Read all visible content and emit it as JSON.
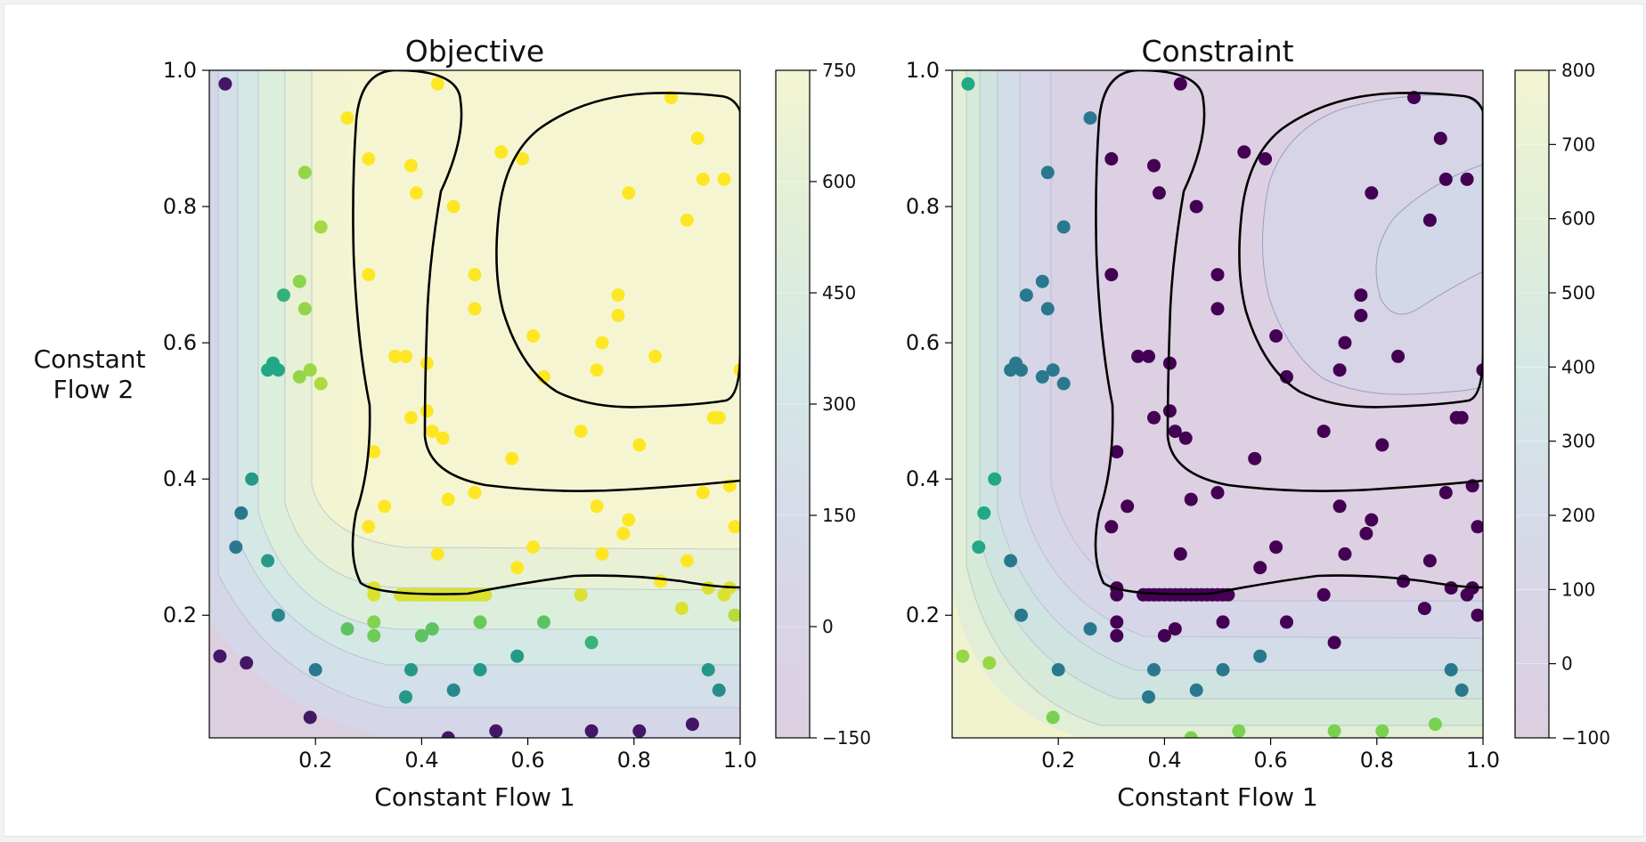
{
  "chart_data": [
    {
      "type": "contour",
      "title": "Objective",
      "xlabel": "Constant Flow 1",
      "ylabel": "Constant\nFlow 2",
      "xlim": [
        0.0,
        1.0
      ],
      "ylim": [
        0.02,
        1.0
      ],
      "xticks": [
        "0.2",
        "0.4",
        "0.6",
        "0.8",
        "1.0"
      ],
      "yticks": [
        "0.2",
        "0.4",
        "0.6",
        "0.8",
        "1.0"
      ],
      "colormap": "viridis",
      "colorbar": {
        "ticks": [
          "−150",
          "0",
          "150",
          "300",
          "450",
          "600",
          "750"
        ],
        "levels": [
          -150,
          0,
          150,
          300,
          450,
          600,
          750
        ]
      },
      "points": [
        {
          "x": 0.03,
          "y": 0.98,
          "v": -100
        },
        {
          "x": 0.18,
          "y": 0.85,
          "v": 480
        },
        {
          "x": 0.21,
          "y": 0.77,
          "v": 500
        },
        {
          "x": 0.17,
          "y": 0.69,
          "v": 470
        },
        {
          "x": 0.18,
          "y": 0.65,
          "v": 480
        },
        {
          "x": 0.14,
          "y": 0.67,
          "v": 330
        },
        {
          "x": 0.11,
          "y": 0.56,
          "v": 300
        },
        {
          "x": 0.12,
          "y": 0.57,
          "v": 300
        },
        {
          "x": 0.13,
          "y": 0.56,
          "v": 300
        },
        {
          "x": 0.17,
          "y": 0.55,
          "v": 480
        },
        {
          "x": 0.19,
          "y": 0.56,
          "v": 490
        },
        {
          "x": 0.21,
          "y": 0.54,
          "v": 510
        },
        {
          "x": 0.08,
          "y": 0.4,
          "v": 250
        },
        {
          "x": 0.06,
          "y": 0.35,
          "v": 150
        },
        {
          "x": 0.05,
          "y": 0.3,
          "v": 150
        },
        {
          "x": 0.11,
          "y": 0.28,
          "v": 250
        },
        {
          "x": 0.13,
          "y": 0.2,
          "v": 200
        },
        {
          "x": 0.2,
          "y": 0.12,
          "v": 150
        },
        {
          "x": 0.19,
          "y": 0.05,
          "v": -100
        },
        {
          "x": 0.02,
          "y": 0.14,
          "v": -100
        },
        {
          "x": 0.07,
          "y": 0.13,
          "v": -100
        },
        {
          "x": 0.26,
          "y": 0.93,
          "v": 700
        },
        {
          "x": 0.3,
          "y": 0.7,
          "v": 700
        },
        {
          "x": 0.3,
          "y": 0.33,
          "v": 700
        },
        {
          "x": 0.31,
          "y": 0.44,
          "v": 700
        },
        {
          "x": 0.33,
          "y": 0.36,
          "v": 700
        },
        {
          "x": 0.3,
          "y": 0.87,
          "v": 700
        },
        {
          "x": 0.35,
          "y": 0.58,
          "v": 700
        },
        {
          "x": 0.37,
          "y": 0.58,
          "v": 700
        },
        {
          "x": 0.38,
          "y": 0.86,
          "v": 700
        },
        {
          "x": 0.39,
          "y": 0.82,
          "v": 700
        },
        {
          "x": 0.38,
          "y": 0.49,
          "v": 700
        },
        {
          "x": 0.41,
          "y": 0.57,
          "v": 700
        },
        {
          "x": 0.41,
          "y": 0.5,
          "v": 700
        },
        {
          "x": 0.42,
          "y": 0.47,
          "v": 700
        },
        {
          "x": 0.44,
          "y": 0.46,
          "v": 700
        },
        {
          "x": 0.45,
          "y": 0.37,
          "v": 700
        },
        {
          "x": 0.43,
          "y": 0.29,
          "v": 700
        },
        {
          "x": 0.46,
          "y": 0.8,
          "v": 700
        },
        {
          "x": 0.43,
          "y": 0.98,
          "v": 700
        },
        {
          "x": 0.5,
          "y": 0.7,
          "v": 700
        },
        {
          "x": 0.5,
          "y": 0.65,
          "v": 700
        },
        {
          "x": 0.5,
          "y": 0.38,
          "v": 700
        },
        {
          "x": 0.55,
          "y": 0.88,
          "v": 700
        },
        {
          "x": 0.59,
          "y": 0.87,
          "v": 700
        },
        {
          "x": 0.57,
          "y": 0.43,
          "v": 700
        },
        {
          "x": 0.58,
          "y": 0.27,
          "v": 700
        },
        {
          "x": 0.61,
          "y": 0.3,
          "v": 700
        },
        {
          "x": 0.61,
          "y": 0.61,
          "v": 700
        },
        {
          "x": 0.63,
          "y": 0.55,
          "v": 700
        },
        {
          "x": 0.7,
          "y": 0.47,
          "v": 700
        },
        {
          "x": 0.73,
          "y": 0.56,
          "v": 700
        },
        {
          "x": 0.74,
          "y": 0.6,
          "v": 700
        },
        {
          "x": 0.77,
          "y": 0.64,
          "v": 700
        },
        {
          "x": 0.77,
          "y": 0.67,
          "v": 700
        },
        {
          "x": 0.74,
          "y": 0.29,
          "v": 700
        },
        {
          "x": 0.73,
          "y": 0.36,
          "v": 700
        },
        {
          "x": 0.78,
          "y": 0.32,
          "v": 700
        },
        {
          "x": 0.79,
          "y": 0.34,
          "v": 700
        },
        {
          "x": 0.79,
          "y": 0.82,
          "v": 700
        },
        {
          "x": 0.81,
          "y": 0.45,
          "v": 700
        },
        {
          "x": 0.84,
          "y": 0.58,
          "v": 700
        },
        {
          "x": 0.87,
          "y": 0.96,
          "v": 700
        },
        {
          "x": 0.9,
          "y": 0.78,
          "v": 700
        },
        {
          "x": 0.92,
          "y": 0.9,
          "v": 700
        },
        {
          "x": 0.93,
          "y": 0.84,
          "v": 700
        },
        {
          "x": 0.93,
          "y": 0.38,
          "v": 700
        },
        {
          "x": 0.95,
          "y": 0.49,
          "v": 700
        },
        {
          "x": 0.96,
          "y": 0.49,
          "v": 700
        },
        {
          "x": 0.97,
          "y": 0.84,
          "v": 700
        },
        {
          "x": 0.98,
          "y": 0.39,
          "v": 700
        },
        {
          "x": 0.99,
          "y": 0.33,
          "v": 700
        },
        {
          "x": 1.0,
          "y": 0.56,
          "v": 700
        },
        {
          "x": 0.85,
          "y": 0.25,
          "v": 600
        },
        {
          "x": 0.89,
          "y": 0.21,
          "v": 560
        },
        {
          "x": 0.9,
          "y": 0.28,
          "v": 650
        },
        {
          "x": 0.94,
          "y": 0.24,
          "v": 560
        },
        {
          "x": 0.97,
          "y": 0.23,
          "v": 560
        },
        {
          "x": 0.98,
          "y": 0.24,
          "v": 560
        },
        {
          "x": 0.99,
          "y": 0.2,
          "v": 520
        },
        {
          "x": 0.7,
          "y": 0.23,
          "v": 560
        },
        {
          "x": 0.31,
          "y": 0.23,
          "v": 560
        },
        {
          "x": 0.31,
          "y": 0.24,
          "v": 560
        },
        {
          "x": 0.36,
          "y": 0.23,
          "v": 560
        },
        {
          "x": 0.37,
          "y": 0.23,
          "v": 560
        },
        {
          "x": 0.38,
          "y": 0.23,
          "v": 560
        },
        {
          "x": 0.39,
          "y": 0.23,
          "v": 560
        },
        {
          "x": 0.4,
          "y": 0.23,
          "v": 560
        },
        {
          "x": 0.41,
          "y": 0.23,
          "v": 560
        },
        {
          "x": 0.42,
          "y": 0.23,
          "v": 560
        },
        {
          "x": 0.43,
          "y": 0.23,
          "v": 560
        },
        {
          "x": 0.44,
          "y": 0.23,
          "v": 560
        },
        {
          "x": 0.45,
          "y": 0.23,
          "v": 560
        },
        {
          "x": 0.46,
          "y": 0.23,
          "v": 560
        },
        {
          "x": 0.47,
          "y": 0.23,
          "v": 560
        },
        {
          "x": 0.48,
          "y": 0.23,
          "v": 560
        },
        {
          "x": 0.49,
          "y": 0.23,
          "v": 560
        },
        {
          "x": 0.5,
          "y": 0.23,
          "v": 560
        },
        {
          "x": 0.51,
          "y": 0.23,
          "v": 560
        },
        {
          "x": 0.52,
          "y": 0.23,
          "v": 560
        },
        {
          "x": 0.31,
          "y": 0.19,
          "v": 460
        },
        {
          "x": 0.31,
          "y": 0.17,
          "v": 430
        },
        {
          "x": 0.26,
          "y": 0.18,
          "v": 400
        },
        {
          "x": 0.4,
          "y": 0.17,
          "v": 400
        },
        {
          "x": 0.42,
          "y": 0.18,
          "v": 400
        },
        {
          "x": 0.51,
          "y": 0.19,
          "v": 420
        },
        {
          "x": 0.63,
          "y": 0.19,
          "v": 400
        },
        {
          "x": 0.72,
          "y": 0.16,
          "v": 340
        },
        {
          "x": 0.38,
          "y": 0.12,
          "v": 250
        },
        {
          "x": 0.37,
          "y": 0.08,
          "v": 250
        },
        {
          "x": 0.46,
          "y": 0.09,
          "v": 200
        },
        {
          "x": 0.51,
          "y": 0.12,
          "v": 250
        },
        {
          "x": 0.58,
          "y": 0.14,
          "v": 260
        },
        {
          "x": 0.94,
          "y": 0.12,
          "v": 250
        },
        {
          "x": 0.96,
          "y": 0.09,
          "v": 220
        },
        {
          "x": 0.45,
          "y": 0.02,
          "v": -100
        },
        {
          "x": 0.54,
          "y": 0.03,
          "v": -100
        },
        {
          "x": 0.72,
          "y": 0.03,
          "v": -100
        },
        {
          "x": 0.81,
          "y": 0.03,
          "v": -100
        },
        {
          "x": 0.91,
          "y": 0.04,
          "v": -100
        }
      ]
    },
    {
      "type": "contour",
      "title": "Constraint",
      "xlabel": "Constant Flow 1",
      "xlim": [
        0.0,
        1.0
      ],
      "ylim": [
        0.02,
        1.0
      ],
      "xticks": [
        "0.2",
        "0.4",
        "0.6",
        "0.8",
        "1.0"
      ],
      "yticks": [
        "0.2",
        "0.4",
        "0.6",
        "0.8",
        "1.0"
      ],
      "colormap": "viridis",
      "colorbar": {
        "ticks": [
          "−100",
          "0",
          "100",
          "200",
          "300",
          "400",
          "500",
          "600",
          "700",
          "800"
        ],
        "levels": [
          -100,
          0,
          100,
          200,
          300,
          400,
          500,
          600,
          700,
          800
        ]
      }
    }
  ]
}
